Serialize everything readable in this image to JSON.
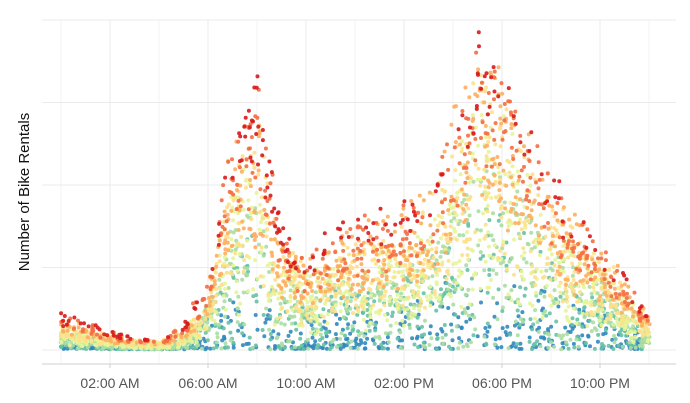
{
  "chart_data": {
    "type": "scatter",
    "title": "",
    "xlabel": "",
    "ylabel": "Number of Bike Rentals",
    "x_ticks": [
      "02:00 AM",
      "06:00 AM",
      "10:00 AM",
      "02:00 PM",
      "06:00 PM",
      "10:00 PM"
    ],
    "x_tick_hours": [
      2,
      6,
      10,
      14,
      18,
      22
    ],
    "xlim_hours": [
      -0.9,
      24.9
    ],
    "ylim": [
      -30,
      1000
    ],
    "y_gridlines": [
      0,
      250,
      500,
      750,
      1000
    ],
    "y_tick_labels_visible": false,
    "grid": true,
    "legend": "none",
    "color_palette": [
      "#d7191c",
      "#f46d43",
      "#fdae61",
      "#fee08b",
      "#e6f598",
      "#abdda4",
      "#66c2a5",
      "#3288bd"
    ],
    "hourly_profile": {
      "hours": [
        0,
        1,
        2,
        3,
        4,
        5,
        6,
        7,
        8,
        9,
        10,
        11,
        12,
        13,
        14,
        15,
        16,
        17,
        18,
        19,
        20,
        21,
        22,
        23
      ],
      "median_rentals": [
        50,
        30,
        20,
        10,
        8,
        25,
        110,
        410,
        620,
        280,
        165,
        195,
        240,
        250,
        225,
        250,
        350,
        650,
        610,
        450,
        330,
        245,
        190,
        120
      ],
      "max_rentals": [
        110,
        85,
        55,
        35,
        25,
        75,
        230,
        700,
        815,
        360,
        320,
        380,
        420,
        440,
        460,
        520,
        760,
        975,
        960,
        780,
        580,
        430,
        360,
        240
      ]
    },
    "point_sampling": "deterministic",
    "point_count": 4200
  }
}
